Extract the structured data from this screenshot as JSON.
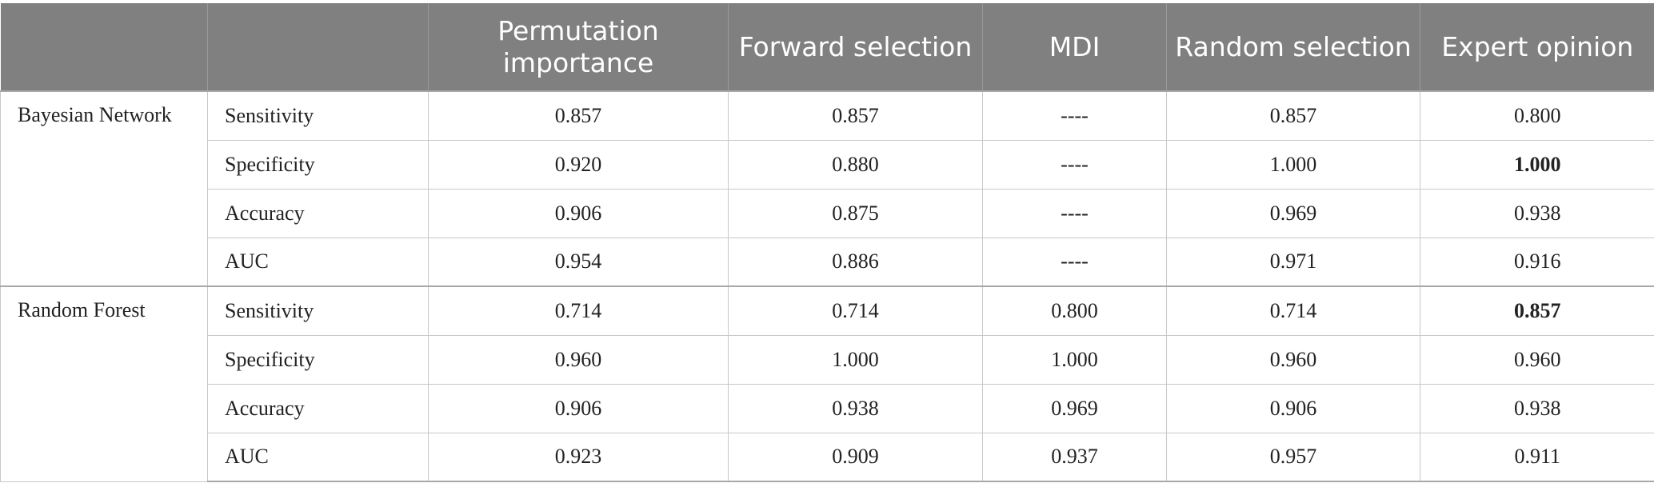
{
  "headers": [
    "",
    "",
    "Permutation importance",
    "Forward selection",
    "MDI",
    "Random selection",
    "Expert opinion"
  ],
  "groups": [
    {
      "model": "Bayesian Network",
      "rows": [
        {
          "metric": "Sensitivity",
          "values": [
            "0.857",
            "0.857",
            "----",
            "0.857",
            "0.800"
          ]
        },
        {
          "metric": "Specificity",
          "values": [
            "0.920",
            "0.880",
            "----",
            "1.000",
            "1.000"
          ]
        },
        {
          "metric": "Accuracy",
          "values": [
            "0.906",
            "0.875",
            "----",
            "0.969",
            "0.938"
          ]
        },
        {
          "metric": "AUC",
          "values": [
            "0.954",
            "0.886",
            "----",
            "0.971",
            "0.916"
          ]
        }
      ]
    },
    {
      "model": "Random Forest",
      "rows": [
        {
          "metric": "Sensitivity",
          "values": [
            "0.714",
            "0.714",
            "0.800",
            "0.714",
            "0.857"
          ]
        },
        {
          "metric": "Specificity",
          "values": [
            "0.960",
            "1.000",
            "1.000",
            "0.960",
            "0.960"
          ]
        },
        {
          "metric": "Accuracy",
          "values": [
            "0.906",
            "0.938",
            "0.969",
            "0.906",
            "0.938"
          ]
        },
        {
          "metric": "AUC",
          "values": [
            "0.923",
            "0.909",
            "0.937",
            "0.957",
            "0.911"
          ]
        }
      ]
    }
  ]
}
